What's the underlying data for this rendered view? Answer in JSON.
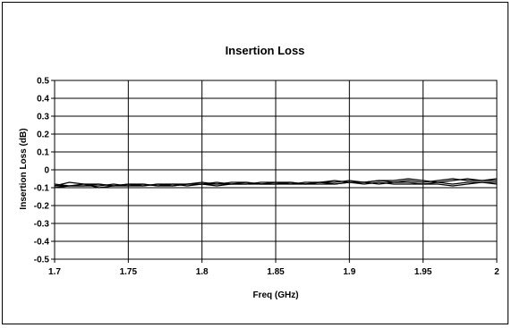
{
  "chart_data": {
    "type": "line",
    "title": "Insertion Loss",
    "xlabel": "Freq (GHz)",
    "ylabel": "Insertion Loss (dB)",
    "xlim": [
      1.7,
      2.0
    ],
    "ylim": [
      -0.5,
      0.5
    ],
    "xticks": [
      1.7,
      1.75,
      1.8,
      1.85,
      1.9,
      1.95,
      2
    ],
    "xtick_labels": [
      "1.7",
      "1.75",
      "1.8",
      "1.85",
      "1.9",
      "1.95",
      "2"
    ],
    "yticks": [
      0.5,
      0.4,
      0.3,
      0.2,
      0.1,
      0,
      -0.1,
      -0.2,
      -0.3,
      -0.4,
      -0.5
    ],
    "ytick_labels": [
      "0.5",
      "0.4",
      "0.3",
      "0.2",
      "0.1",
      "0",
      "-0.1",
      "-0.2",
      "-0.3",
      "-0.4",
      "-0.5"
    ],
    "grid": true,
    "legend": "none",
    "line_color": "#000000",
    "x": [
      1.7,
      1.71,
      1.72,
      1.73,
      1.74,
      1.75,
      1.76,
      1.77,
      1.78,
      1.79,
      1.8,
      1.81,
      1.82,
      1.83,
      1.84,
      1.85,
      1.86,
      1.87,
      1.88,
      1.89,
      1.9,
      1.91,
      1.92,
      1.93,
      1.94,
      1.95,
      1.96,
      1.97,
      1.98,
      1.99,
      2.0
    ],
    "series": [
      {
        "values": [
          -0.09,
          -0.07,
          -0.08,
          -0.1,
          -0.09,
          -0.08,
          -0.08,
          -0.09,
          -0.08,
          -0.08,
          -0.07,
          -0.08,
          -0.07,
          -0.07,
          -0.08,
          -0.07,
          -0.07,
          -0.08,
          -0.07,
          -0.07,
          -0.06,
          -0.07,
          -0.06,
          -0.06,
          -0.05,
          -0.06,
          -0.07,
          -0.06,
          -0.05,
          -0.06,
          -0.06
        ]
      },
      {
        "values": [
          -0.08,
          -0.09,
          -0.08,
          -0.08,
          -0.09,
          -0.08,
          -0.09,
          -0.08,
          -0.09,
          -0.08,
          -0.08,
          -0.07,
          -0.08,
          -0.08,
          -0.07,
          -0.07,
          -0.08,
          -0.07,
          -0.07,
          -0.06,
          -0.07,
          -0.07,
          -0.06,
          -0.07,
          -0.06,
          -0.07,
          -0.06,
          -0.05,
          -0.06,
          -0.06,
          -0.05
        ]
      },
      {
        "values": [
          -0.1,
          -0.09,
          -0.09,
          -0.09,
          -0.08,
          -0.09,
          -0.09,
          -0.08,
          -0.08,
          -0.09,
          -0.08,
          -0.08,
          -0.08,
          -0.08,
          -0.08,
          -0.08,
          -0.08,
          -0.08,
          -0.08,
          -0.08,
          -0.07,
          -0.08,
          -0.07,
          -0.08,
          -0.08,
          -0.08,
          -0.08,
          -0.09,
          -0.08,
          -0.07,
          -0.08
        ]
      },
      {
        "values": [
          -0.09,
          -0.09,
          -0.09,
          -0.08,
          -0.09,
          -0.09,
          -0.08,
          -0.09,
          -0.09,
          -0.08,
          -0.08,
          -0.09,
          -0.08,
          -0.07,
          -0.08,
          -0.08,
          -0.07,
          -0.08,
          -0.07,
          -0.08,
          -0.07,
          -0.07,
          -0.08,
          -0.07,
          -0.07,
          -0.08,
          -0.07,
          -0.08,
          -0.07,
          -0.07,
          -0.07
        ]
      }
    ]
  }
}
